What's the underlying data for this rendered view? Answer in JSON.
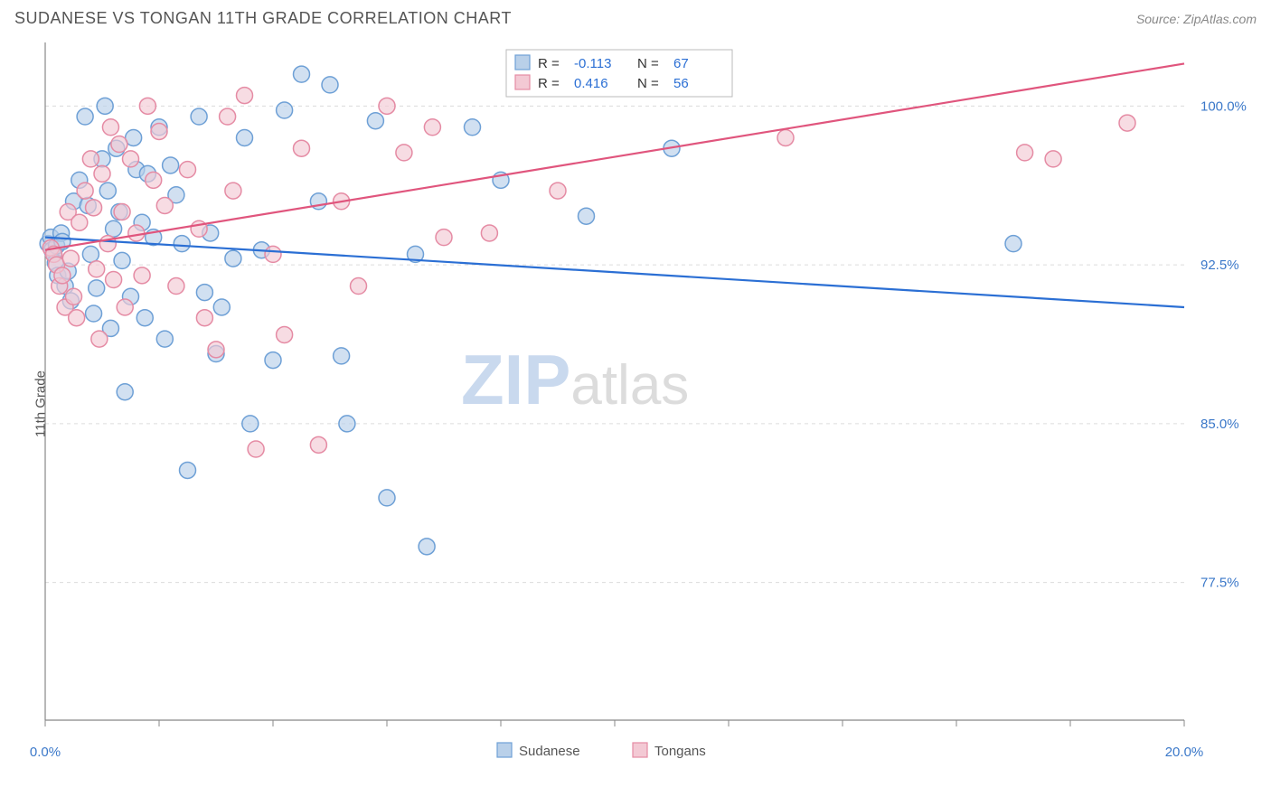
{
  "header": {
    "title": "SUDANESE VS TONGAN 11TH GRADE CORRELATION CHART",
    "source": "Source: ZipAtlas.com"
  },
  "ylabel": "11th Grade",
  "watermark": {
    "part1": "ZIP",
    "part2": "atlas"
  },
  "chart": {
    "type": "scatter",
    "background_color": "#ffffff",
    "grid_color": "#dcdcdc",
    "axis_color": "#888888",
    "xlim": [
      0,
      20
    ],
    "ylim": [
      71,
      103
    ],
    "xticks": [
      0,
      2,
      4,
      6,
      8,
      10,
      12,
      14,
      16,
      18,
      20
    ],
    "xtick_labels_shown": {
      "0": "0.0%",
      "20": "20.0%"
    },
    "yticks": [
      77.5,
      85.0,
      92.5,
      100.0
    ],
    "ytick_labels": [
      "77.5%",
      "85.0%",
      "92.5%",
      "100.0%"
    ],
    "marker_radius": 9,
    "marker_stroke_width": 1.5,
    "line_width": 2.2,
    "series": [
      {
        "name": "Sudanese",
        "fill": "#b9d0e9",
        "stroke": "#6ea0d6",
        "fill_opacity": 0.65,
        "line_color": "#2b6fd4",
        "R": "-0.113",
        "N": "67",
        "trend": {
          "x1": 0,
          "y1": 93.8,
          "x2": 20,
          "y2": 90.5
        },
        "points": [
          [
            0.05,
            93.5
          ],
          [
            0.1,
            93.8
          ],
          [
            0.12,
            93.2
          ],
          [
            0.15,
            93.0
          ],
          [
            0.18,
            92.6
          ],
          [
            0.2,
            93.4
          ],
          [
            0.22,
            92.0
          ],
          [
            0.28,
            94.0
          ],
          [
            0.3,
            93.6
          ],
          [
            0.35,
            91.5
          ],
          [
            0.4,
            92.2
          ],
          [
            0.45,
            90.8
          ],
          [
            0.5,
            95.5
          ],
          [
            0.6,
            96.5
          ],
          [
            0.7,
            99.5
          ],
          [
            0.75,
            95.3
          ],
          [
            0.8,
            93.0
          ],
          [
            0.85,
            90.2
          ],
          [
            0.9,
            91.4
          ],
          [
            1.0,
            97.5
          ],
          [
            1.05,
            100.0
          ],
          [
            1.1,
            96.0
          ],
          [
            1.15,
            89.5
          ],
          [
            1.2,
            94.2
          ],
          [
            1.25,
            98.0
          ],
          [
            1.3,
            95.0
          ],
          [
            1.35,
            92.7
          ],
          [
            1.4,
            86.5
          ],
          [
            1.5,
            91.0
          ],
          [
            1.55,
            98.5
          ],
          [
            1.6,
            97.0
          ],
          [
            1.7,
            94.5
          ],
          [
            1.75,
            90.0
          ],
          [
            1.8,
            96.8
          ],
          [
            1.9,
            93.8
          ],
          [
            2.0,
            99.0
          ],
          [
            2.1,
            89.0
          ],
          [
            2.2,
            97.2
          ],
          [
            2.3,
            95.8
          ],
          [
            2.4,
            93.5
          ],
          [
            2.5,
            82.8
          ],
          [
            2.7,
            99.5
          ],
          [
            2.8,
            91.2
          ],
          [
            2.9,
            94.0
          ],
          [
            3.0,
            88.3
          ],
          [
            3.1,
            90.5
          ],
          [
            3.3,
            92.8
          ],
          [
            3.5,
            98.5
          ],
          [
            3.6,
            85.0
          ],
          [
            3.8,
            93.2
          ],
          [
            4.0,
            88.0
          ],
          [
            4.2,
            99.8
          ],
          [
            4.5,
            101.5
          ],
          [
            4.8,
            95.5
          ],
          [
            5.0,
            101.0
          ],
          [
            5.2,
            88.2
          ],
          [
            5.3,
            85.0
          ],
          [
            5.8,
            99.3
          ],
          [
            6.0,
            81.5
          ],
          [
            6.5,
            93.0
          ],
          [
            6.7,
            79.2
          ],
          [
            7.5,
            99.0
          ],
          [
            8.0,
            96.5
          ],
          [
            9.5,
            94.8
          ],
          [
            10.5,
            101.0
          ],
          [
            11.0,
            98.0
          ],
          [
            17.0,
            93.5
          ]
        ]
      },
      {
        "name": "Tongans",
        "fill": "#f3c9d4",
        "stroke": "#e58ba4",
        "fill_opacity": 0.65,
        "line_color": "#e0557d",
        "R": "0.416",
        "N": "56",
        "trend": {
          "x1": 0,
          "y1": 93.2,
          "x2": 20,
          "y2": 102.0
        },
        "points": [
          [
            0.1,
            93.3
          ],
          [
            0.15,
            93.0
          ],
          [
            0.2,
            92.5
          ],
          [
            0.25,
            91.5
          ],
          [
            0.3,
            92.0
          ],
          [
            0.35,
            90.5
          ],
          [
            0.4,
            95.0
          ],
          [
            0.45,
            92.8
          ],
          [
            0.5,
            91.0
          ],
          [
            0.55,
            90.0
          ],
          [
            0.6,
            94.5
          ],
          [
            0.7,
            96.0
          ],
          [
            0.8,
            97.5
          ],
          [
            0.85,
            95.2
          ],
          [
            0.9,
            92.3
          ],
          [
            0.95,
            89.0
          ],
          [
            1.0,
            96.8
          ],
          [
            1.1,
            93.5
          ],
          [
            1.15,
            99.0
          ],
          [
            1.2,
            91.8
          ],
          [
            1.3,
            98.2
          ],
          [
            1.35,
            95.0
          ],
          [
            1.4,
            90.5
          ],
          [
            1.5,
            97.5
          ],
          [
            1.6,
            94.0
          ],
          [
            1.7,
            92.0
          ],
          [
            1.8,
            100.0
          ],
          [
            1.9,
            96.5
          ],
          [
            2.0,
            98.8
          ],
          [
            2.1,
            95.3
          ],
          [
            2.3,
            91.5
          ],
          [
            2.5,
            97.0
          ],
          [
            2.7,
            94.2
          ],
          [
            2.8,
            90.0
          ],
          [
            3.0,
            88.5
          ],
          [
            3.2,
            99.5
          ],
          [
            3.3,
            96.0
          ],
          [
            3.5,
            100.5
          ],
          [
            3.7,
            83.8
          ],
          [
            4.0,
            93.0
          ],
          [
            4.2,
            89.2
          ],
          [
            4.5,
            98.0
          ],
          [
            4.8,
            84.0
          ],
          [
            5.2,
            95.5
          ],
          [
            5.5,
            91.5
          ],
          [
            6.0,
            100.0
          ],
          [
            6.3,
            97.8
          ],
          [
            6.8,
            99.0
          ],
          [
            7.0,
            93.8
          ],
          [
            7.8,
            94.0
          ],
          [
            9.0,
            96.0
          ],
          [
            11.5,
            101.0
          ],
          [
            13.0,
            98.5
          ],
          [
            17.2,
            97.8
          ],
          [
            17.7,
            97.5
          ],
          [
            19.0,
            99.2
          ]
        ]
      }
    ]
  },
  "stats_legend": {
    "r_label": "R =",
    "n_label": "N ="
  },
  "bottom_legend": {
    "items": [
      "Sudanese",
      "Tongans"
    ]
  }
}
